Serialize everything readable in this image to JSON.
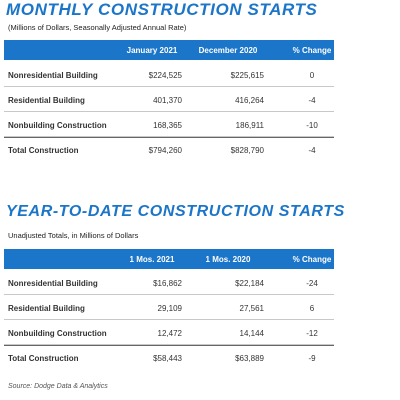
{
  "monthly": {
    "title": "MONTHLY CONSTRUCTION STARTS",
    "subtitle": "(Millions of Dollars, Seasonally Adjusted Annual Rate)",
    "columns": [
      "January 2021",
      "December 2020",
      "% Change"
    ],
    "rows": [
      [
        "Nonresidential Building",
        "$224,525",
        "$225,615",
        "0"
      ],
      [
        "Residential Building",
        "401,370",
        "416,264",
        "-4"
      ],
      [
        "Nonbuilding Construction",
        "168,365",
        "186,911",
        "-10"
      ]
    ],
    "total": [
      "Total Construction",
      "$794,260",
      "$828,790",
      "-4"
    ]
  },
  "ytd": {
    "title": "YEAR-TO-DATE CONSTRUCTION STARTS",
    "subtitle": "Unadjusted Totals, in Millions of Dollars",
    "columns": [
      "1 Mos. 2021",
      "1 Mos. 2020",
      "% Change"
    ],
    "rows": [
      [
        "Nonresidential Building",
        "$16,862",
        "$22,184",
        "-24"
      ],
      [
        "Residential Building",
        "29,109",
        "27,561",
        "6"
      ],
      [
        "Nonbuilding Construction",
        "12,472",
        "14,144",
        "-12"
      ]
    ],
    "total": [
      "Total Construction",
      "$58,443",
      "$63,889",
      "-9"
    ]
  },
  "source": "Source: Dodge Data & Analytics"
}
